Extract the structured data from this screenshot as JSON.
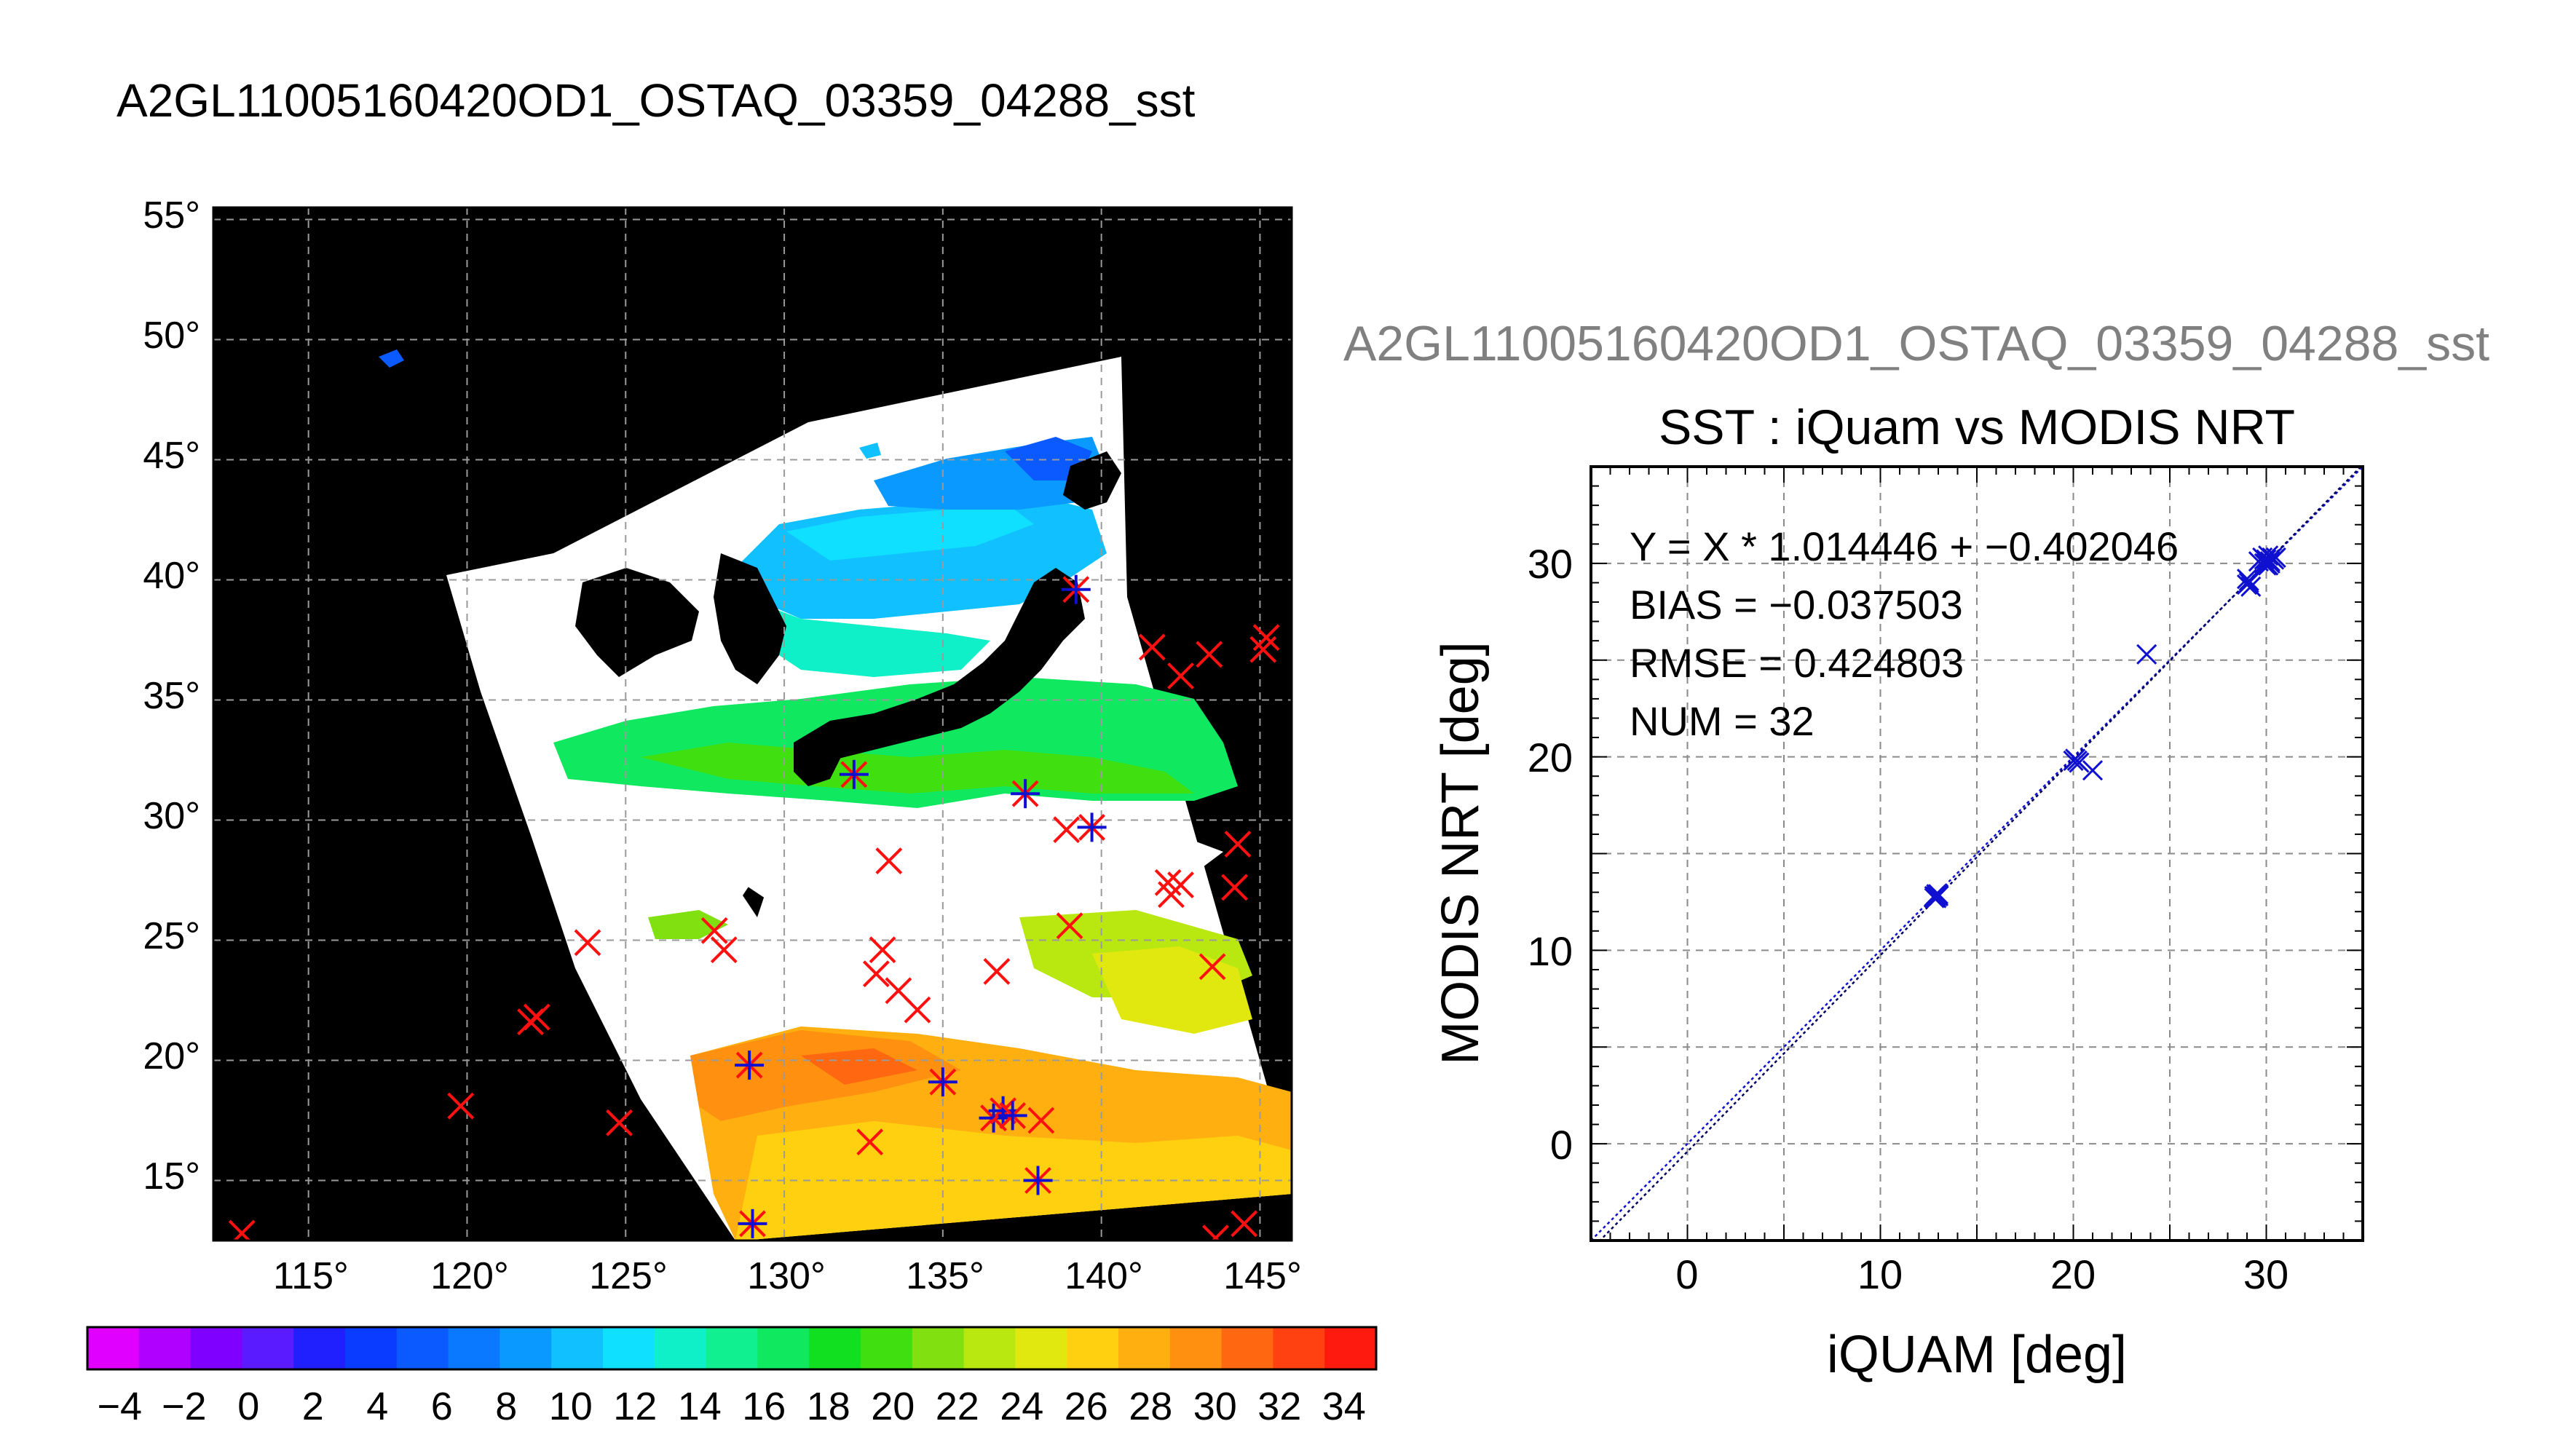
{
  "map": {
    "title": "A2GL11005160420OD1_OSTAQ_03359_04288_sst",
    "lat_ticks": [
      "55°",
      "50°",
      "45°",
      "40°",
      "35°",
      "30°",
      "25°",
      "20°",
      "15°"
    ],
    "lon_ticks": [
      "115°",
      "120°",
      "125°",
      "130°",
      "135°",
      "140°",
      "145°"
    ],
    "colorbar": {
      "labels": [
        "−4",
        "−2",
        "0",
        "2",
        "4",
        "6",
        "8",
        "10",
        "12",
        "14",
        "16",
        "18",
        "20",
        "22",
        "24",
        "26",
        "28",
        "30",
        "32",
        "34"
      ],
      "colors": [
        "#e000ff",
        "#b000ff",
        "#8000ff",
        "#5a1bff",
        "#2020ff",
        "#0a3cff",
        "#0a5aff",
        "#0a78ff",
        "#0a9aff",
        "#10c0ff",
        "#10e0ff",
        "#10f0c8",
        "#10f090",
        "#10e860",
        "#10e020",
        "#40e010",
        "#80e010",
        "#b8e810",
        "#e0e810",
        "#ffd010",
        "#ffb010",
        "#ff9010",
        "#ff6810",
        "#ff4010",
        "#ff1a10"
      ]
    },
    "buoys_red": [
      {
        "lon": 112.9,
        "lat": 12.8
      },
      {
        "lon": 119.8,
        "lat": 18.1
      },
      {
        "lon": 122.0,
        "lat": 21.6
      },
      {
        "lon": 122.2,
        "lat": 21.8
      },
      {
        "lon": 123.8,
        "lat": 24.9
      },
      {
        "lon": 124.8,
        "lat": 17.4
      },
      {
        "lon": 127.8,
        "lat": 25.4
      },
      {
        "lon": 128.1,
        "lat": 24.6
      },
      {
        "lon": 132.7,
        "lat": 16.6
      },
      {
        "lon": 132.9,
        "lat": 23.6
      },
      {
        "lon": 133.1,
        "lat": 24.6
      },
      {
        "lon": 133.3,
        "lat": 28.3
      },
      {
        "lon": 133.6,
        "lat": 22.9
      },
      {
        "lon": 134.2,
        "lat": 22.1
      },
      {
        "lon": 136.7,
        "lat": 23.7
      },
      {
        "lon": 138.1,
        "lat": 17.5
      },
      {
        "lon": 138.9,
        "lat": 29.6
      },
      {
        "lon": 139.0,
        "lat": 25.6
      },
      {
        "lon": 141.6,
        "lat": 37.2
      },
      {
        "lon": 142.1,
        "lat": 27.4
      },
      {
        "lon": 142.2,
        "lat": 26.9
      },
      {
        "lon": 142.5,
        "lat": 27.3
      },
      {
        "lon": 142.5,
        "lat": 36.0
      },
      {
        "lon": 143.4,
        "lat": 36.9
      },
      {
        "lon": 143.5,
        "lat": 23.9
      },
      {
        "lon": 143.6,
        "lat": 12.6
      },
      {
        "lon": 144.2,
        "lat": 27.2
      },
      {
        "lon": 144.3,
        "lat": 29.0
      },
      {
        "lon": 144.5,
        "lat": 13.2
      },
      {
        "lon": 145.1,
        "lat": 37.1
      },
      {
        "lon": 145.2,
        "lat": 37.6
      }
    ],
    "buoys_blue_red": [
      {
        "lon": 128.9,
        "lat": 19.8
      },
      {
        "lon": 129.0,
        "lat": 13.2
      },
      {
        "lon": 132.2,
        "lat": 31.9
      },
      {
        "lon": 135.0,
        "lat": 19.1
      },
      {
        "lon": 136.6,
        "lat": 17.6
      },
      {
        "lon": 136.9,
        "lat": 17.9
      },
      {
        "lon": 137.2,
        "lat": 17.7
      },
      {
        "lon": 137.6,
        "lat": 31.1
      },
      {
        "lon": 138.0,
        "lat": 15.0
      },
      {
        "lon": 139.2,
        "lat": 39.6
      },
      {
        "lon": 139.7,
        "lat": 29.7
      }
    ]
  },
  "scatter": {
    "window_title": "A2GL11005160420OD1_OSTAQ_03359_04288_sst",
    "title": "SST : iQuam vs MODIS NRT",
    "annotations": [
      "Y = X * 1.014446 + −0.402046",
      "BIAS = −0.037503",
      "RMSE = 0.424803",
      "NUM = 32"
    ],
    "series_color": "#1010d0"
  },
  "chart_data": {
    "type": "scatter",
    "title": "SST : iQuam vs MODIS NRT",
    "xlabel": "iQUAM [deg]",
    "ylabel": "MODIS NRT [deg]",
    "xlim": [
      -5,
      35
    ],
    "ylim": [
      -5,
      35
    ],
    "xticks": [
      "0",
      "10",
      "20",
      "30"
    ],
    "yticks": [
      "0",
      "10",
      "20",
      "30"
    ],
    "grid": true,
    "fit": {
      "slope": 1.014446,
      "intercept": -0.402046
    },
    "x": [
      12.8,
      12.9,
      12.9,
      12.8,
      13.0,
      13.0,
      12.9,
      20.0,
      20.1,
      20.2,
      20.3,
      21.0,
      23.8,
      29.0,
      29.1,
      29.2,
      29.0,
      29.1,
      29.6,
      29.8,
      29.9,
      30.0,
      30.0,
      30.1,
      30.2,
      30.3,
      30.4,
      30.0,
      29.9,
      30.2,
      30.5,
      30.1
    ],
    "y": [
      12.7,
      12.8,
      12.9,
      12.8,
      12.9,
      12.8,
      12.7,
      19.8,
      19.9,
      19.8,
      19.7,
      19.3,
      25.3,
      28.9,
      29.0,
      28.8,
      29.2,
      29.1,
      30.1,
      30.3,
      30.0,
      30.2,
      29.9,
      30.4,
      30.1,
      30.3,
      30.2,
      30.0,
      30.2,
      30.0,
      30.3,
      29.9
    ]
  }
}
